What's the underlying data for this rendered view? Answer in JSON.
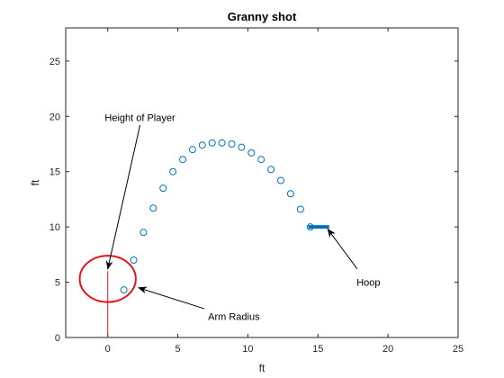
{
  "chart_data": {
    "type": "scatter",
    "title": "Granny shot",
    "xlabel": "ft",
    "ylabel": "ft",
    "xlim": [
      -3,
      25
    ],
    "ylim": [
      0,
      28
    ],
    "x_ticks": [
      "0",
      "5",
      "10",
      "15",
      "20",
      "25"
    ],
    "y_ticks": [
      "0",
      "5",
      "10",
      "15",
      "20",
      "25"
    ],
    "grid": false,
    "colors": {
      "points": "#0072BD",
      "hoop": "#0072BD",
      "arm_circle": "#E5141B",
      "player_line": "#E5141B",
      "arrow": "#000000",
      "axes": "#262626"
    },
    "series": [
      {
        "x": [
          1.15,
          1.85,
          2.55,
          3.25,
          3.95,
          4.65,
          5.35,
          6.05,
          6.75,
          7.45,
          8.15,
          8.85,
          9.55,
          10.25,
          10.95,
          11.65,
          12.35,
          13.05,
          13.75,
          14.45
        ],
        "y": [
          4.3,
          7.0,
          9.5,
          11.7,
          13.5,
          15.0,
          16.1,
          17.0,
          17.4,
          17.6,
          17.6,
          17.5,
          17.2,
          16.7,
          16.1,
          15.2,
          14.2,
          13.0,
          11.6,
          10.0
        ]
      }
    ],
    "hoop": {
      "x": [
        14.3,
        15.8
      ],
      "y": 10.0
    },
    "player": {
      "x": 0,
      "height": 6.0
    },
    "arm_circle": {
      "cx": 0,
      "cy": 5.3,
      "rx": 2.0,
      "ry": 2.1
    },
    "annotations": [
      {
        "text": "Height of Player",
        "text_x": 2.3,
        "text_y": 19.9,
        "tip_x": 0.0,
        "tip_y": 6.2,
        "tail_x": 2.3,
        "tail_y": 19.2
      },
      {
        "text": "Arm Radius",
        "text_x": 9.0,
        "text_y": 1.9,
        "tip_x": 2.2,
        "tip_y": 4.5,
        "tail_x": 6.9,
        "tail_y": 2.6
      },
      {
        "text": "Hoop",
        "text_x": 18.6,
        "text_y": 5.0,
        "tip_x": 15.7,
        "tip_y": 9.8,
        "tail_x": 17.8,
        "tail_y": 6.2
      }
    ]
  }
}
